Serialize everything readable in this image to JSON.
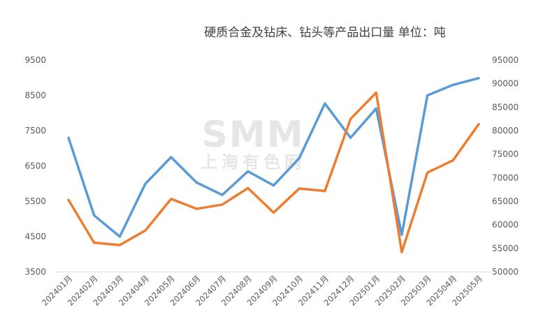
{
  "chart_data": {
    "type": "line",
    "title": "硬质合金及钻床、钻头等产品出口量 单位：吨",
    "categories": [
      "202401月",
      "202402月",
      "202403月",
      "202404月",
      "202405月",
      "202406月",
      "202407月",
      "202408月",
      "202409月",
      "202410月",
      "202411月",
      "202412月",
      "202501月",
      "202502月",
      "202503月",
      "202504月",
      "202505月"
    ],
    "left_axis": {
      "ylim": [
        3500,
        9500
      ],
      "ticks": [
        "9500",
        "8500",
        "7500",
        "6500",
        "5500",
        "4500",
        "3500"
      ]
    },
    "right_axis": {
      "ylim": [
        50000,
        95000
      ],
      "ticks": [
        "95000",
        "90000",
        "85000",
        "80000",
        "75000",
        "70000",
        "65000",
        "60000",
        "55000",
        "50000"
      ]
    },
    "grid": false,
    "series": [
      {
        "axis": "left",
        "color": "#5b9bd5",
        "values": [
          7300,
          5100,
          4500,
          6000,
          6750,
          6030,
          5680,
          6350,
          5950,
          6720,
          8270,
          7300,
          8130,
          4550,
          8500,
          8800,
          8990
        ]
      },
      {
        "axis": "right",
        "color": "#ed7d31",
        "values": [
          65300,
          56200,
          55700,
          58800,
          65500,
          63400,
          64300,
          67800,
          62600,
          67700,
          67200,
          82500,
          88100,
          54200,
          71100,
          73700,
          81400
        ]
      }
    ],
    "watermark": {
      "main": "SMM",
      "sub": "上海有色网"
    }
  }
}
